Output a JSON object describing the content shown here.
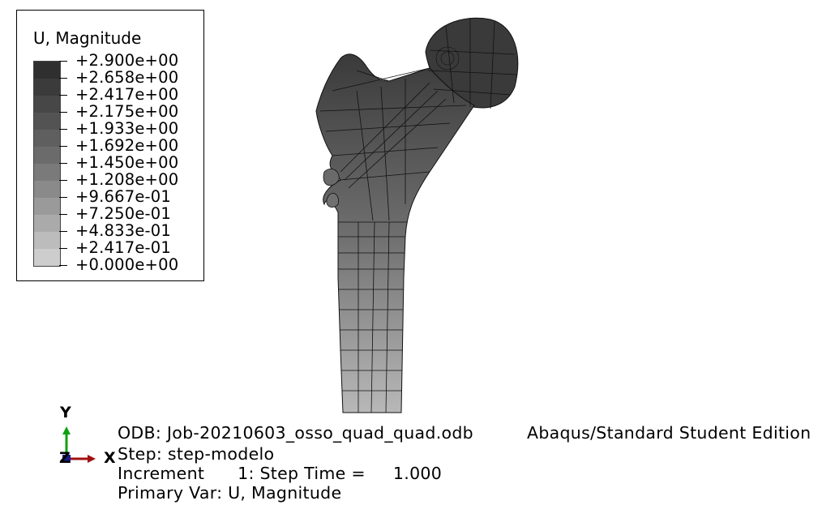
{
  "legend": {
    "title": "U, Magnitude",
    "labels": [
      "+2.900e+00",
      "+2.658e+00",
      "+2.417e+00",
      "+2.175e+00",
      "+1.933e+00",
      "+1.692e+00",
      "+1.450e+00",
      "+1.208e+00",
      "+9.667e-01",
      "+7.250e-01",
      "+4.833e-01",
      "+2.417e-01",
      "+0.000e+00"
    ],
    "band_colors": [
      "#2f2f2f",
      "#3b3b3b",
      "#474747",
      "#535353",
      "#5f5f5f",
      "#6b6b6b",
      "#7a7a7a",
      "#8a8a8a",
      "#9a9a9a",
      "#aaaaaa",
      "#bcbcbc",
      "#cdcdcd"
    ]
  },
  "triad": {
    "y_label": "Y",
    "x_label": "X",
    "z_label": "Z",
    "colors": {
      "x": "#a01010",
      "y": "#10a010",
      "z": "#1a1a8a"
    }
  },
  "info": {
    "odb": "ODB: Job-20210603_osso_quad_quad.odb",
    "edition": "Abaqus/Standard Student Edition",
    "step": "Step: step-modelo",
    "increment": "Increment      1: Step Time =     1.000",
    "primary_var": "Primary Var: U, Magnitude"
  }
}
